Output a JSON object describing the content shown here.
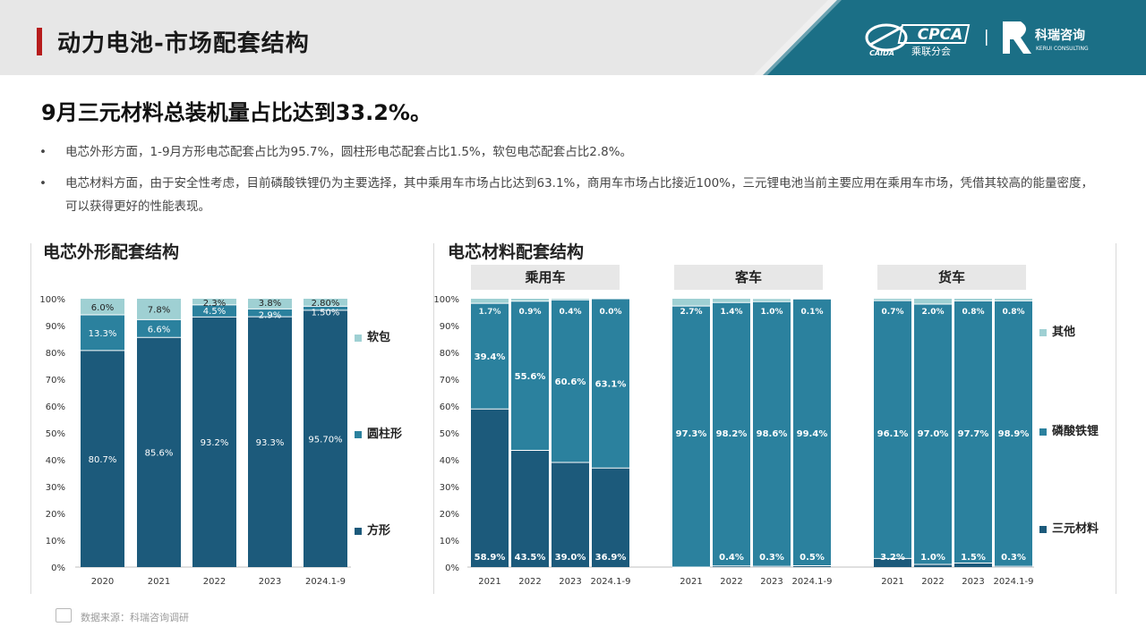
{
  "header": {
    "title": "动力电池-市场配套结构",
    "logo_cpca_text": "CPCA",
    "logo_cpca_sub": "乘联分会",
    "logo_cpca_mark": "CAIDA",
    "logo_kerui_text": "科瑞咨询",
    "logo_kerui_sub": "KERUI CONSULTING"
  },
  "headline": "9月三元材料总装机量占比达到33.2%。",
  "bullets": [
    "电芯外形方面，1-9月方形电芯配套占比为95.7%，圆柱形电芯配套占比1.5%，软包电芯配套占比2.8%。",
    "电芯材料方面，由于安全性考虑，目前磷酸铁锂仍为主要选择，其中乘用车市场占比达到63.1%，商用车市场占比接近100%，三元锂电池当前主要应用在乘用车市场，凭借其较高的能量密度，可以获得更好的性能表现。"
  ],
  "bullet_dot": "•",
  "source": "数据来源：科瑞咨询调研",
  "colors": {
    "dark": "#1c5a7b",
    "mid": "#2b819e",
    "light": "#9fd0d3",
    "teal_band": "#1b6f86"
  },
  "chart_data": [
    {
      "type": "bar",
      "stacked": true,
      "title": "电芯外形配套结构",
      "categories": [
        "2020",
        "2021",
        "2022",
        "2023",
        "2024.1-9"
      ],
      "yticks": [
        "0%",
        "10%",
        "20%",
        "30%",
        "40%",
        "50%",
        "60%",
        "70%",
        "80%",
        "90%",
        "100%"
      ],
      "ylim": [
        0,
        100
      ],
      "legend_position": "right",
      "series": [
        {
          "name": "方形",
          "values": [
            80.7,
            85.6,
            93.2,
            93.3,
            95.7
          ],
          "labels": [
            "80.7%",
            "85.6%",
            "93.2%",
            "93.3%",
            "95.70%"
          ],
          "color": "#1c5a7b"
        },
        {
          "name": "圆柱形",
          "values": [
            13.3,
            6.6,
            4.5,
            2.9,
            1.5
          ],
          "labels": [
            "13.3%",
            "6.6%",
            "4.5%",
            "2.9%",
            "1.50%"
          ],
          "color": "#2b819e"
        },
        {
          "name": "软包",
          "values": [
            6.0,
            7.8,
            2.3,
            3.8,
            2.8
          ],
          "labels": [
            "6.0%",
            "7.8%",
            "2.3%",
            "3.8%",
            "2.80%"
          ],
          "color": "#9fd0d3"
        }
      ]
    },
    {
      "type": "bar",
      "stacked": true,
      "title": "电芯材料配套结构",
      "groups": [
        "乘用车",
        "客车",
        "货车"
      ],
      "categories": [
        "2021",
        "2022",
        "2023",
        "2024.1-9"
      ],
      "yticks": [
        "0%",
        "10%",
        "20%",
        "30%",
        "40%",
        "50%",
        "60%",
        "70%",
        "80%",
        "90%",
        "100%"
      ],
      "ylim": [
        0,
        100
      ],
      "legend_position": "right",
      "series_names": [
        "三元材料",
        "磷酸铁锂",
        "其他"
      ],
      "series_colors": [
        "#1c5a7b",
        "#2b819e",
        "#9fd0d3"
      ],
      "data": {
        "乘用车": {
          "三元材料": {
            "values": [
              58.9,
              43.5,
              39.0,
              36.9
            ],
            "labels": [
              "58.9%",
              "43.5%",
              "39.0%",
              "36.9%"
            ]
          },
          "磷酸铁锂": {
            "values": [
              39.4,
              55.6,
              60.6,
              63.1
            ],
            "labels": [
              "39.4%",
              "55.6%",
              "60.6%",
              "63.1%"
            ]
          },
          "其他": {
            "values": [
              1.7,
              0.9,
              0.4,
              0.0
            ],
            "labels": [
              "1.7%",
              "0.9%",
              "0.4%",
              "0.0%"
            ]
          }
        },
        "客车": {
          "三元材料": {
            "values": [
              0.0,
              0.4,
              0.3,
              0.5
            ],
            "labels": [
              "",
              "0.4%",
              "0.3%",
              "0.5%"
            ]
          },
          "磷酸铁锂": {
            "values": [
              97.3,
              98.2,
              98.6,
              99.4
            ],
            "labels": [
              "97.3%",
              "98.2%",
              "98.6%",
              "99.4%"
            ]
          },
          "其他": {
            "values": [
              2.7,
              1.4,
              1.0,
              0.1
            ],
            "labels": [
              "2.7%",
              "1.4%",
              "1.0%",
              "0.1%"
            ]
          }
        },
        "货车": {
          "三元材料": {
            "values": [
              3.2,
              1.0,
              1.5,
              0.3
            ],
            "labels": [
              "3.2%",
              "1.0%",
              "1.5%",
              "0.3%"
            ]
          },
          "磷酸铁锂": {
            "values": [
              96.1,
              97.0,
              97.7,
              98.9
            ],
            "labels": [
              "96.1%",
              "97.0%",
              "97.7%",
              "98.9%"
            ]
          },
          "其他": {
            "values": [
              0.7,
              2.0,
              0.8,
              0.8
            ],
            "labels": [
              "0.7%",
              "2.0%",
              "0.8%",
              "0.8%"
            ]
          }
        }
      }
    }
  ]
}
